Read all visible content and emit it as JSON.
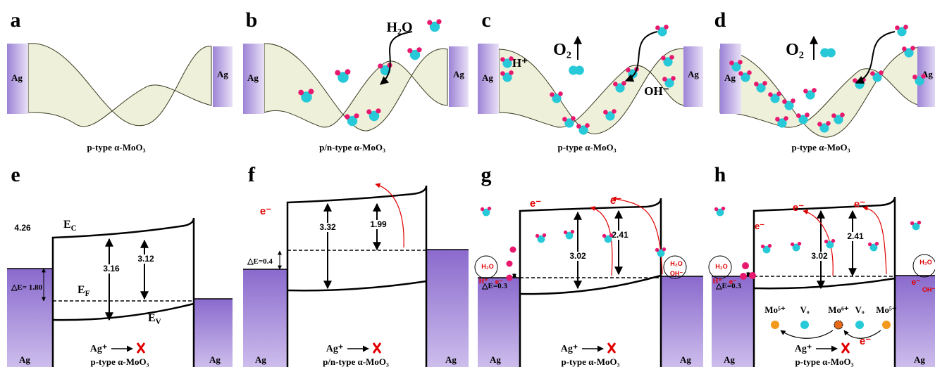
{
  "panels": [
    {
      "label": "a",
      "caption": "p-type α-MoO₃",
      "electrodes": [
        "Ag",
        "Ag"
      ]
    },
    {
      "label": "b",
      "caption": "p/n-type α-MoO₃",
      "electrodes": [
        "Ag",
        "Ag"
      ],
      "molecule": "H₂O"
    },
    {
      "label": "c",
      "caption": "p-type α-MoO₃",
      "electrodes": [
        "Ag",
        "Ag"
      ],
      "gas": "O₂",
      "ions": [
        "H⁺",
        "OH⁻"
      ]
    },
    {
      "label": "d",
      "caption": "p-type α-MoO₃",
      "electrodes": [
        "Ag",
        "Ag"
      ],
      "gas": "O₂"
    },
    {
      "label": "e",
      "caption": "p-type α-MoO₃",
      "electrodes": [
        "Ag",
        "Ag"
      ],
      "work_function": "4.26",
      "conduction": {
        "base": "E",
        "sub": "C"
      },
      "fermi": {
        "base": "E",
        "sub": "F"
      },
      "valence": {
        "base": "E",
        "sub": "V"
      },
      "offset": "△E= 1.80",
      "gaps": [
        "3.16",
        "3.12"
      ],
      "ion": "Ag⁺"
    },
    {
      "label": "f",
      "caption": "p/n-type α-MoO₃",
      "electrodes": [
        "Ag",
        "Ag"
      ],
      "electrons": [
        "e⁻"
      ],
      "offset": "△E=0.4",
      "gaps": [
        "3.32",
        "1.99"
      ],
      "ion": "Ag⁺"
    },
    {
      "label": "g",
      "caption": "p-type α-MoO₃",
      "electrodes": [
        "Ag",
        "Ag"
      ],
      "electrons": [
        "e⁻",
        "e⁻"
      ],
      "offset": "△E=0.3",
      "gaps": [
        "3.02",
        "2.41"
      ],
      "ion": "Ag⁺",
      "left_species": [
        "H₂O",
        "H⁺",
        "e⁻"
      ],
      "right_species": [
        "H₂O",
        "OH⁻"
      ]
    },
    {
      "label": "h",
      "caption": "p-type α-MoO₃",
      "electrodes": [
        "Ag",
        "Ag"
      ],
      "electrons": [
        "e⁻",
        "e⁻",
        "e⁻",
        "e⁻"
      ],
      "offset": "△E=0.3",
      "gaps": [
        "3.02",
        "2.41"
      ],
      "ion": "Ag⁺",
      "defects": [
        "Mo⁵⁺",
        "Vₒ",
        "Mo⁶⁺",
        "Vₒ",
        "Mo⁵⁺"
      ],
      "left_species": [
        "H₂O",
        "H⁺",
        "e⁻"
      ],
      "right_species": [
        "H₂O",
        "e⁻",
        "OH⁻"
      ]
    }
  ]
}
